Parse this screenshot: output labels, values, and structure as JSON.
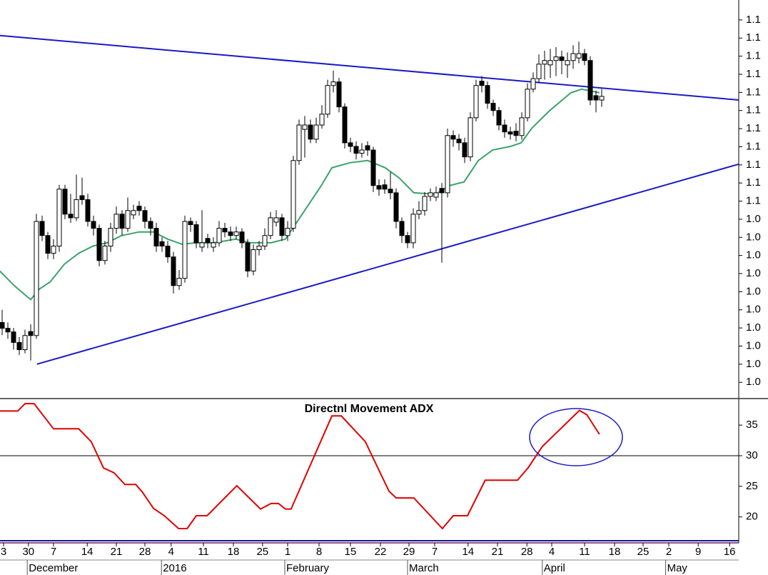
{
  "chart_data": [
    {
      "type": "candlestick",
      "xlim": [
        -0.375,
        129
      ],
      "ylim": [
        1.0461,
        1.1555
      ],
      "yticks": [
        {
          "value": 1.15,
          "label": "1.1"
        },
        {
          "value": 1.145,
          "label": "1.1"
        },
        {
          "value": 1.14,
          "label": "1.1"
        },
        {
          "value": 1.135,
          "label": "1.1"
        },
        {
          "value": 1.13,
          "label": "1.1"
        },
        {
          "value": 1.125,
          "label": "1.1"
        },
        {
          "value": 1.12,
          "label": "1.1"
        },
        {
          "value": 1.115,
          "label": "1.1"
        },
        {
          "value": 1.11,
          "label": "1.1"
        },
        {
          "value": 1.105,
          "label": "1.1"
        },
        {
          "value": 1.1,
          "label": "1.1"
        },
        {
          "value": 1.095,
          "label": "1.0"
        },
        {
          "value": 1.09,
          "label": "1.0"
        },
        {
          "value": 1.085,
          "label": "1.0"
        },
        {
          "value": 1.08,
          "label": "1.0"
        },
        {
          "value": 1.075,
          "label": "1.0"
        },
        {
          "value": 1.07,
          "label": "1.0"
        },
        {
          "value": 1.065,
          "label": "1.0"
        },
        {
          "value": 1.06,
          "label": "1.0"
        },
        {
          "value": 1.055,
          "label": "1.0"
        },
        {
          "value": 1.05,
          "label": "1.0"
        }
      ],
      "xticks": [
        {
          "value": 0.25,
          "label": "3"
        },
        {
          "value": 4.6,
          "label": "30"
        },
        {
          "value": 9,
          "label": "7"
        },
        {
          "value": 14.9,
          "label": "14"
        },
        {
          "value": 20,
          "label": "21"
        },
        {
          "value": 25,
          "label": "28"
        },
        {
          "value": 29.6,
          "label": "4"
        },
        {
          "value": 35.25,
          "label": "11"
        },
        {
          "value": 40.5,
          "label": "18"
        },
        {
          "value": 45.6,
          "label": "25"
        },
        {
          "value": 50,
          "label": "1"
        },
        {
          "value": 55.5,
          "label": "8"
        },
        {
          "value": 61,
          "label": "15"
        },
        {
          "value": 66.25,
          "label": "22"
        },
        {
          "value": 71.25,
          "label": "29"
        },
        {
          "value": 75.75,
          "label": "7"
        },
        {
          "value": 81.6,
          "label": "14"
        },
        {
          "value": 86.75,
          "label": "21"
        },
        {
          "value": 91.9,
          "label": "28"
        },
        {
          "value": 96.25,
          "label": "4"
        },
        {
          "value": 102,
          "label": "11"
        },
        {
          "value": 107.25,
          "label": "18"
        },
        {
          "value": 112.25,
          "label": "25"
        },
        {
          "value": 116.75,
          "label": "2"
        },
        {
          "value": 121.9,
          "label": "9"
        },
        {
          "value": 127.4,
          "label": "16"
        }
      ],
      "months": [
        {
          "value": 4.4,
          "label": "December"
        },
        {
          "value": 27.9,
          "label": "2016"
        },
        {
          "value": 49.5,
          "label": "February"
        },
        {
          "value": 71,
          "label": "March"
        },
        {
          "value": 94.6,
          "label": "April"
        },
        {
          "value": 116.2,
          "label": "May"
        }
      ],
      "ohlc": [
        [
          1.0665,
          1.07,
          1.063,
          1.0649
        ],
        [
          1.0649,
          1.0665,
          1.062,
          1.0639
        ],
        [
          1.0639,
          1.065,
          1.059,
          1.061
        ],
        [
          1.061,
          1.0625,
          1.0575,
          1.059
        ],
        [
          1.059,
          1.0645,
          1.058,
          1.0629
        ],
        [
          1.064,
          1.066,
          1.056,
          1.0629
        ],
        [
          1.0629,
          1.0965,
          1.062,
          1.0944
        ],
        [
          1.0944,
          1.096,
          1.089,
          1.0905
        ],
        [
          1.0905,
          1.0915,
          1.084,
          1.0856
        ],
        [
          1.0856,
          1.0895,
          1.084,
          1.0876
        ],
        [
          1.0876,
          1.1045,
          1.086,
          1.1033
        ],
        [
          1.1033,
          1.1045,
          1.095,
          1.0964
        ],
        [
          1.0964,
          1.102,
          1.094,
          1.0954
        ],
        [
          1.0954,
          1.1073,
          1.0945,
          1.1004
        ],
        [
          1.1015,
          1.1065,
          1.099,
          1.1004
        ],
        [
          1.1004,
          1.102,
          1.093,
          1.0944
        ],
        [
          1.0944,
          1.096,
          1.0905,
          1.0925
        ],
        [
          1.0925,
          1.0935,
          1.082,
          1.0836
        ],
        [
          1.0836,
          1.089,
          1.0825,
          1.0876
        ],
        [
          1.0876,
          1.094,
          1.086,
          1.0925
        ],
        [
          1.0925,
          1.0985,
          1.091,
          1.0964
        ],
        [
          1.0964,
          1.0975,
          1.0905,
          1.0925
        ],
        [
          1.0925,
          1.101,
          1.0915,
          1.0974
        ],
        [
          1.0962,
          1.099,
          1.095,
          1.0974
        ],
        [
          1.0986,
          1.1,
          1.096,
          1.0974
        ],
        [
          1.0974,
          1.0985,
          1.0925,
          1.0944
        ],
        [
          1.0944,
          1.0955,
          1.0905,
          1.0925
        ],
        [
          1.0925,
          1.094,
          1.086,
          1.0876
        ],
        [
          1.0888,
          1.09,
          1.086,
          1.0876
        ],
        [
          1.0876,
          1.089,
          1.083,
          1.0846
        ],
        [
          1.0846,
          1.086,
          1.0745,
          1.0767
        ],
        [
          1.0767,
          1.081,
          1.0755,
          1.0787
        ],
        [
          1.0787,
          1.096,
          1.0775,
          1.0944
        ],
        [
          1.0944,
          1.0955,
          1.0915,
          1.0935
        ],
        [
          1.0935,
          1.0945,
          1.087,
          1.0885
        ],
        [
          1.0873,
          1.0975,
          1.086,
          1.0885
        ],
        [
          1.0897,
          1.091,
          1.087,
          1.0885
        ],
        [
          1.0873,
          1.09,
          1.086,
          1.0885
        ],
        [
          1.0885,
          1.0945,
          1.0875,
          1.0925
        ],
        [
          1.0925,
          1.094,
          1.09,
          1.0915
        ],
        [
          1.0915,
          1.093,
          1.089,
          1.0905
        ],
        [
          1.0905,
          1.093,
          1.0895,
          1.0915
        ],
        [
          1.0915,
          1.0925,
          1.087,
          1.0885
        ],
        [
          1.0885,
          1.0895,
          1.079,
          1.0807
        ],
        [
          1.0807,
          1.088,
          1.0795,
          1.0866
        ],
        [
          1.0866,
          1.089,
          1.085,
          1.0876
        ],
        [
          1.0876,
          1.0925,
          1.0865,
          1.0905
        ],
        [
          1.0905,
          1.097,
          1.0895,
          1.0954
        ],
        [
          1.0942,
          1.0975,
          1.093,
          1.0954
        ],
        [
          1.0954,
          1.0965,
          1.089,
          1.0905
        ],
        [
          1.0905,
          1.0945,
          1.089,
          1.0925
        ],
        [
          1.0925,
          1.1125,
          1.0915,
          1.1112
        ],
        [
          1.1112,
          1.1225,
          1.11,
          1.121
        ],
        [
          1.1198,
          1.1235,
          1.112,
          1.121
        ],
        [
          1.121,
          1.1225,
          1.116,
          1.1171
        ],
        [
          1.1171,
          1.123,
          1.116,
          1.121
        ],
        [
          1.121,
          1.1265,
          1.12,
          1.124
        ],
        [
          1.124,
          1.1335,
          1.123,
          1.1319
        ],
        [
          1.1319,
          1.136,
          1.13,
          1.1329
        ],
        [
          1.1329,
          1.134,
          1.1245,
          1.126
        ],
        [
          1.126,
          1.127,
          1.1145,
          1.1161
        ],
        [
          1.1161,
          1.1175,
          1.1135,
          1.1151
        ],
        [
          1.1151,
          1.1165,
          1.1115,
          1.1132
        ],
        [
          1.1132,
          1.116,
          1.112,
          1.1141
        ],
        [
          1.1153,
          1.1165,
          1.1125,
          1.1141
        ],
        [
          1.1141,
          1.115,
          1.1025,
          1.1043
        ],
        [
          1.1043,
          1.106,
          1.1015,
          1.1033
        ],
        [
          1.1045,
          1.106,
          1.102,
          1.1033
        ],
        [
          1.1033,
          1.108,
          1.1005,
          1.1023
        ],
        [
          1.1023,
          1.1035,
          1.0925,
          1.0944
        ],
        [
          1.0944,
          1.0955,
          1.0885,
          1.0905
        ],
        [
          1.0905,
          1.0915,
          1.087,
          1.0885
        ],
        [
          1.0885,
          1.098,
          1.087,
          1.0964
        ],
        [
          1.0964,
          1.1,
          1.095,
          1.0974
        ],
        [
          1.0974,
          1.1025,
          1.096,
          1.1013
        ],
        [
          1.1013,
          1.1035,
          1.1,
          1.1023
        ],
        [
          1.1011,
          1.104,
          1.1,
          1.1023
        ],
        [
          1.1035,
          1.105,
          1.083,
          1.1023
        ],
        [
          1.1023,
          1.12,
          1.101,
          1.1181
        ],
        [
          1.1181,
          1.1195,
          1.115,
          1.1171
        ],
        [
          1.1171,
          1.1185,
          1.114,
          1.1161
        ],
        [
          1.1161,
          1.1175,
          1.1105,
          1.1122
        ],
        [
          1.1122,
          1.1245,
          1.111,
          1.123
        ],
        [
          1.123,
          1.1335,
          1.122,
          1.1319
        ],
        [
          1.1331,
          1.1345,
          1.13,
          1.1319
        ],
        [
          1.1319,
          1.133,
          1.1255,
          1.127
        ],
        [
          1.127,
          1.128,
          1.1235,
          1.125
        ],
        [
          1.125,
          1.126,
          1.1195,
          1.121
        ],
        [
          1.121,
          1.1225,
          1.1175,
          1.1191
        ],
        [
          1.1191,
          1.1205,
          1.117,
          1.1185
        ],
        [
          1.1193,
          1.1215,
          1.1165,
          1.1181
        ],
        [
          1.1181,
          1.1245,
          1.117,
          1.123
        ],
        [
          1.123,
          1.1325,
          1.122,
          1.1309
        ],
        [
          1.1309,
          1.1355,
          1.13,
          1.1338
        ],
        [
          1.1338,
          1.1405,
          1.1325,
          1.1378
        ],
        [
          1.1378,
          1.1415,
          1.1335,
          1.1388
        ],
        [
          1.1376,
          1.142,
          1.134,
          1.1388
        ],
        [
          1.1388,
          1.1425,
          1.1345,
          1.1398
        ],
        [
          1.1398,
          1.1415,
          1.135,
          1.1388
        ],
        [
          1.1376,
          1.141,
          1.134,
          1.1388
        ],
        [
          1.1388,
          1.143,
          1.1365,
          1.1407
        ],
        [
          1.1395,
          1.144,
          1.138,
          1.1407
        ],
        [
          1.1407,
          1.142,
          1.1375,
          1.1388
        ],
        [
          1.1388,
          1.14,
          1.1265,
          1.1279
        ],
        [
          1.1291,
          1.1305,
          1.1245,
          1.1279
        ],
        [
          1.1279,
          1.131,
          1.126,
          1.1289
        ]
      ],
      "moving_average": {
        "color": "#3aa36a",
        "x": [
          -0.4,
          2.1,
          5,
          6.5,
          8.4,
          10.9,
          13.4,
          15.9,
          18.4,
          20.9,
          24,
          26.5,
          29,
          31.5,
          34,
          37.1,
          40.9,
          43.4,
          47.1,
          49.6,
          50.9,
          53.4,
          55.9,
          57.75,
          60.9,
          64,
          67.1,
          69.6,
          72.1,
          75.9,
          78.4,
          80.9,
          83.4,
          85.9,
          89,
          90.9,
          92.75,
          95.9,
          99.6,
          101.5,
          103.4,
          104.6
        ],
        "values": [
          1.0807,
          1.0767,
          1.0728,
          1.0757,
          1.0777,
          1.0826,
          1.0856,
          1.0876,
          1.0885,
          1.0905,
          1.0915,
          1.0915,
          1.0895,
          1.0881,
          1.0885,
          1.0885,
          1.0895,
          1.0885,
          1.0885,
          1.0895,
          1.0925,
          1.0984,
          1.1043,
          1.1092,
          1.1106,
          1.1112,
          1.1092,
          1.1063,
          1.1023,
          1.1019,
          1.1043,
          1.1053,
          1.1112,
          1.1141,
          1.1151,
          1.1161,
          1.1201,
          1.125,
          1.1299,
          1.1309,
          1.1303,
          1.1299
        ]
      },
      "trendlines": [
        {
          "color": "#1a1ac8",
          "x": [
            -0.375,
            129
          ],
          "values": [
            1.1457,
            1.1279
          ]
        },
        {
          "color": "#1a1ac8",
          "x": [
            6.1,
            129
          ],
          "values": [
            1.055,
            1.1102
          ]
        }
      ]
    },
    {
      "type": "line",
      "title": "Directnl Movement ADX",
      "xlim": [
        -0.375,
        129
      ],
      "ylim": [
        16.0,
        39.1
      ],
      "yticks": [
        20,
        25,
        30,
        35
      ],
      "reference_line": 30,
      "series": [
        {
          "color": "#e00000",
          "x": [
            -0.4,
            2.75,
            4,
            5.6,
            9,
            13.4,
            15.6,
            17.75,
            19.6,
            21.5,
            23.4,
            24.6,
            26.5,
            28.4,
            30.9,
            32.4,
            34,
            35.9,
            41.1,
            45.25,
            47.1,
            48.4,
            49.6,
            50.6,
            57.75,
            59.4,
            63.6,
            67.75,
            69,
            72.1,
            77.1,
            79,
            81.5,
            84.6,
            90.25,
            92.1,
            94.6,
            101.1,
            102.4,
            104.6
          ],
          "values": [
            37.3,
            37.3,
            38.5,
            38.5,
            34.4,
            34.4,
            32.3,
            28.0,
            27.2,
            25.3,
            25.3,
            24.0,
            21.4,
            20.2,
            18.1,
            18.1,
            20.2,
            20.2,
            25.1,
            21.3,
            22.2,
            22.2,
            21.3,
            21.3,
            36.5,
            36.5,
            32.3,
            24.2,
            23.1,
            23.1,
            18.1,
            20.2,
            20.2,
            26.0,
            26.0,
            28.0,
            31.5,
            37.4,
            36.7,
            33.5
          ]
        }
      ]
    }
  ]
}
